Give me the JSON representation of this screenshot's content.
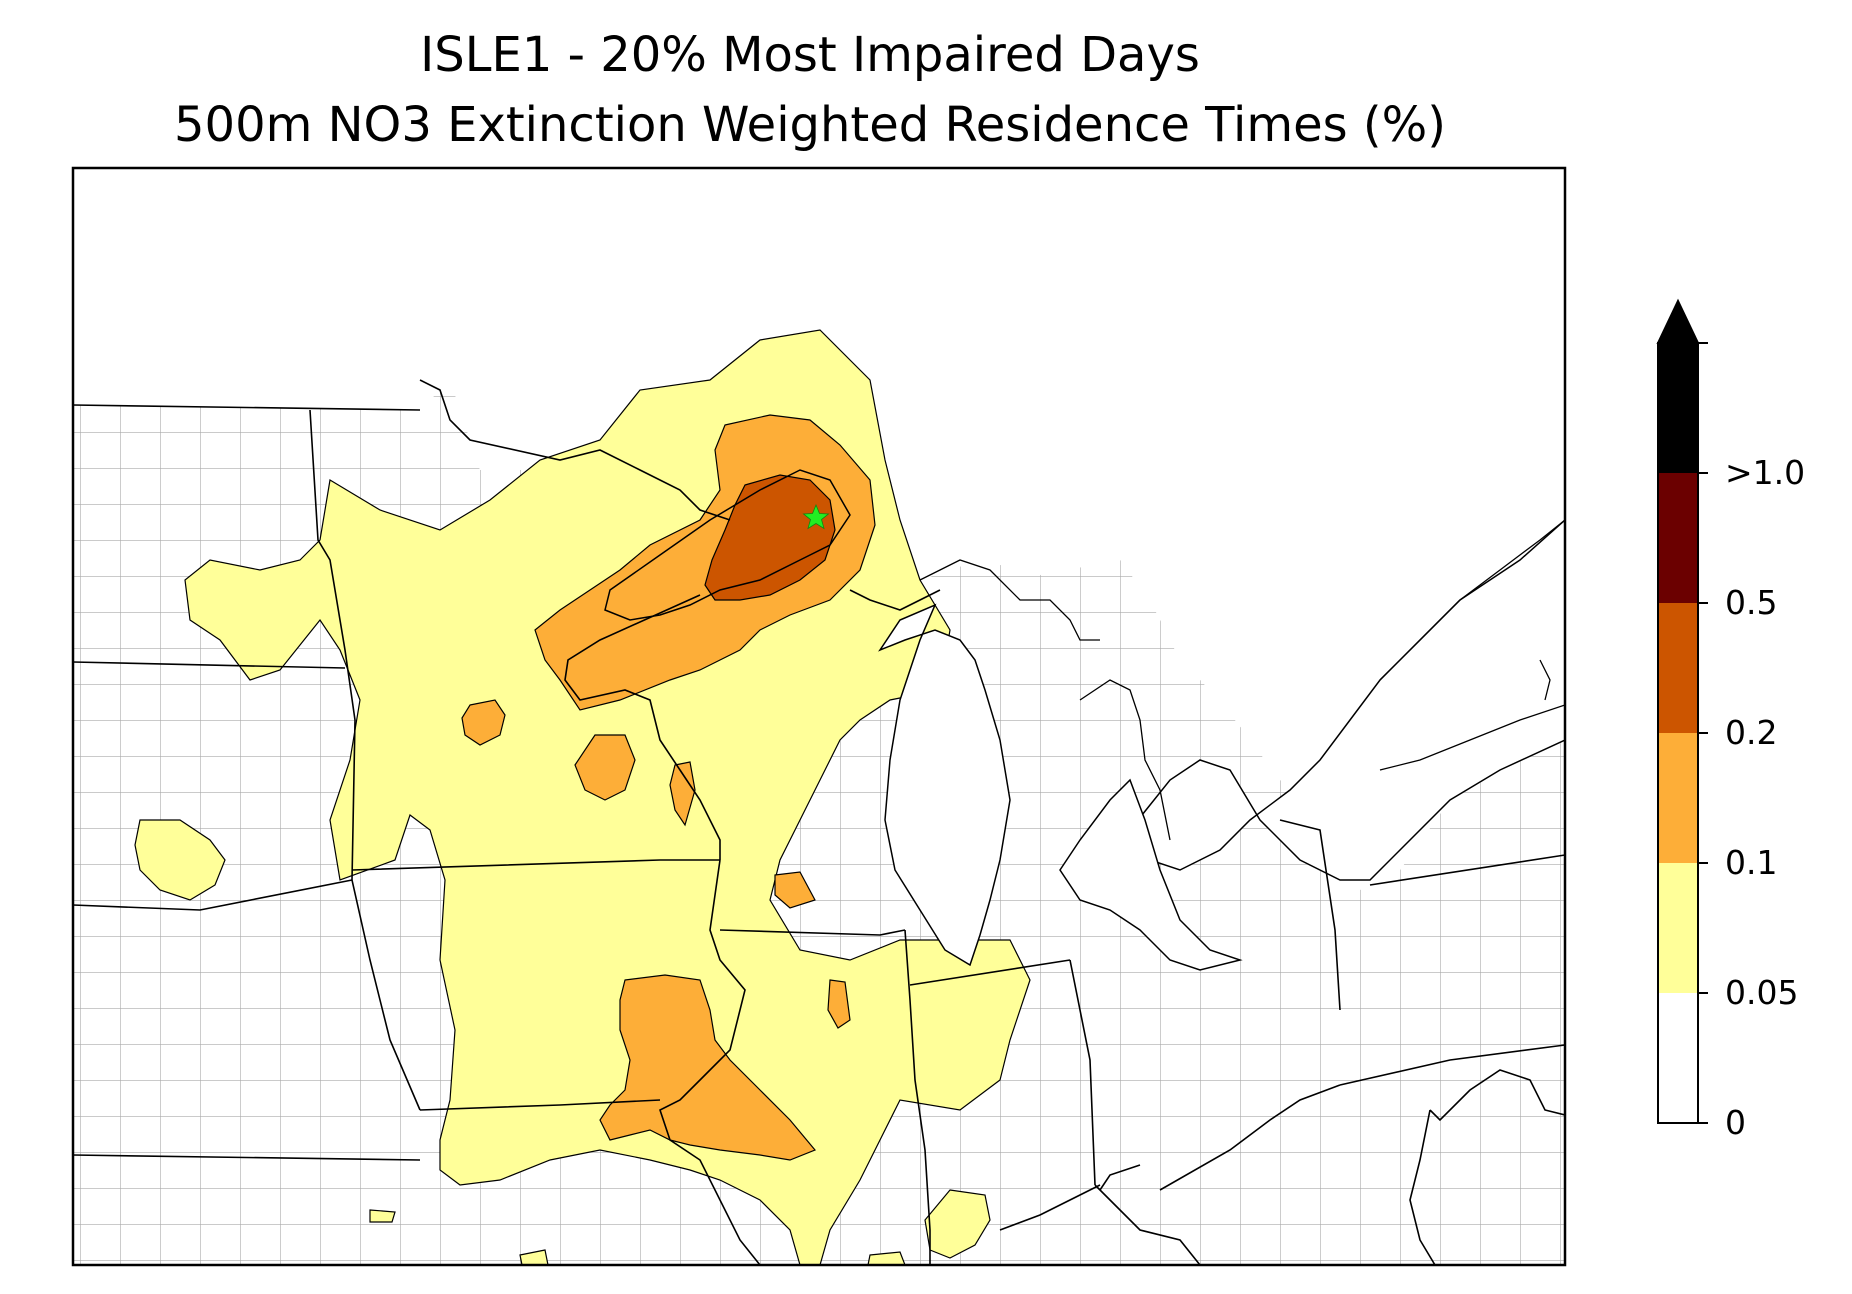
{
  "title": {
    "line1": "ISLE1 - 20% Most Impaired Days",
    "line2": "500m NO3 Extinction Weighted Residence Times (%)"
  },
  "colorbar": {
    "levels": [
      {
        "label": "0",
        "color": "#ffffff"
      },
      {
        "label": "0.05",
        "color": "#ffff99"
      },
      {
        "label": "0.1",
        "color": "#fdae38"
      },
      {
        "label": "0.2",
        "color": "#cc5500"
      },
      {
        "label": "0.5",
        "color": "#6b0000"
      },
      {
        "label": ">1.0",
        "color": "#000000"
      }
    ],
    "extend": "max"
  },
  "colors": {
    "county_lines": "#aaaaaa",
    "state_lines": "#000000",
    "site_marker": "#22ee22"
  },
  "site_marker": {
    "icon": "star-icon"
  }
}
